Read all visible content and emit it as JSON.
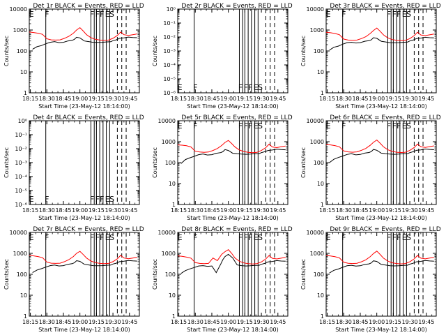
{
  "colors": {
    "events": "#000000",
    "lld": "#ff0000",
    "background": "#ffffff"
  },
  "xlabel": "Start Time (23-May-12 18:14:00)",
  "ylabel": "Counts/sec",
  "xticks": [
    "18:15",
    "18:30",
    "18:45",
    "19:00",
    "19:15",
    "19:30",
    "19:45"
  ],
  "yticks_counts": [
    "1",
    "10",
    "100",
    "1000",
    "10000"
  ],
  "yticks_small": [
    "10⁻⁶",
    "10⁻⁵",
    "10⁻⁴",
    "10⁻³",
    "10⁻²",
    "10⁻¹",
    "10⁰"
  ],
  "chart_data": [
    {
      "type": "line",
      "title": "Det 1r BLACK = Events, RED = LLD",
      "has_data": true,
      "yscale": "log",
      "xlabel": "Start Time (23-May-12 18:14:00)",
      "ylabel": "Counts/sec",
      "flag_labels": [
        "E",
        "F",
        "F",
        "F",
        "F",
        "E",
        "S"
      ],
      "series": [
        {
          "name": "Events",
          "x": [
            "18:17",
            "18:21",
            "18:25",
            "18:29",
            "18:33",
            "18:37",
            "18:41",
            "18:45",
            "18:49",
            "18:53",
            "18:55",
            "18:57",
            "19:00",
            "19:04",
            "19:08",
            "19:12",
            "19:16",
            "19:20",
            "19:24",
            "19:28",
            "19:30",
            "19:33",
            "19:36",
            "19:40",
            "19:44",
            "19:48",
            "19:52"
          ],
          "values": [
            120,
            160,
            180,
            220,
            260,
            280,
            250,
            260,
            300,
            320,
            360,
            450,
            420,
            300,
            280,
            260,
            255,
            260,
            270,
            275,
            310,
            340,
            400,
            420,
            460,
            440,
            430
          ]
        },
        {
          "name": "LLD",
          "x": [
            "18:14",
            "18:18",
            "18:22",
            "18:26",
            "18:30",
            "18:34",
            "18:38",
            "18:42",
            "18:46",
            "18:50",
            "18:54",
            "18:57",
            "19:00",
            "19:03",
            "19:06",
            "19:10",
            "19:14",
            "19:18",
            "19:22",
            "19:26",
            "19:30",
            "19:34",
            "19:37",
            "19:40",
            "19:44",
            "19:48",
            "19:52"
          ],
          "values": [
            800,
            760,
            700,
            620,
            380,
            340,
            330,
            340,
            400,
            500,
            700,
            1000,
            1300,
            900,
            600,
            430,
            360,
            330,
            320,
            330,
            400,
            550,
            800,
            600,
            550,
            600,
            650
          ]
        }
      ]
    },
    {
      "type": "line",
      "title": "Det 2r BLACK = Events, RED = LLD",
      "has_data": false,
      "yscale": "log",
      "xlabel": "Start Time (23-May-12 18:14:00)",
      "ylabel": "Counts/sec",
      "flag_labels": [
        "E",
        "F",
        "F",
        "F",
        "F",
        "E",
        "S"
      ],
      "series": []
    },
    {
      "type": "line",
      "title": "Det 3r BLACK = Events, RED = LLD",
      "has_data": true,
      "yscale": "log",
      "xlabel": "Start Time (23-May-12 18:14:00)",
      "ylabel": "Counts/sec",
      "flag_labels": [
        "E",
        "F",
        "F",
        "F",
        "F",
        "E",
        "S"
      ],
      "series": [
        {
          "name": "Events",
          "x": [
            "18:17",
            "18:21",
            "18:25",
            "18:29",
            "18:33",
            "18:37",
            "18:41",
            "18:45",
            "18:49",
            "18:53",
            "18:55",
            "18:57",
            "19:00",
            "19:04",
            "19:08",
            "19:12",
            "19:16",
            "19:20",
            "19:24",
            "19:28",
            "19:30",
            "19:33",
            "19:36",
            "19:40",
            "19:44",
            "19:48",
            "19:52"
          ],
          "values": [
            110,
            150,
            170,
            210,
            250,
            260,
            240,
            250,
            290,
            310,
            340,
            430,
            400,
            290,
            270,
            250,
            245,
            250,
            260,
            265,
            300,
            330,
            390,
            410,
            450,
            430,
            420
          ]
        },
        {
          "name": "LLD",
          "x": [
            "18:14",
            "18:18",
            "18:22",
            "18:26",
            "18:30",
            "18:34",
            "18:38",
            "18:42",
            "18:46",
            "18:50",
            "18:54",
            "18:57",
            "19:00",
            "19:03",
            "19:06",
            "19:10",
            "19:14",
            "19:18",
            "19:22",
            "19:26",
            "19:30",
            "19:34",
            "19:37",
            "19:40",
            "19:44",
            "19:48",
            "19:52"
          ],
          "values": [
            780,
            740,
            680,
            600,
            370,
            330,
            320,
            330,
            390,
            480,
            680,
            950,
            1250,
            880,
            590,
            420,
            350,
            320,
            310,
            320,
            390,
            540,
            780,
            580,
            540,
            590,
            640
          ]
        }
      ]
    },
    {
      "type": "line",
      "title": "Det 4r BLACK = Events, RED = LLD",
      "has_data": false,
      "yscale": "log",
      "xlabel": "Start Time (23-May-12 18:14:00)",
      "ylabel": "Counts/sec",
      "flag_labels": [
        "E",
        "F",
        "F",
        "F",
        "F",
        "E",
        "S"
      ],
      "series": []
    },
    {
      "type": "line",
      "title": "Det 5r BLACK = Events, RED = LLD",
      "has_data": true,
      "yscale": "log",
      "xlabel": "Start Time (23-May-12 18:14:00)",
      "ylabel": "Counts/sec",
      "flag_labels": [
        "E",
        "F",
        "F",
        "F",
        "F",
        "E",
        "S"
      ],
      "series": [
        {
          "name": "Events",
          "x": [
            "18:17",
            "18:21",
            "18:25",
            "18:29",
            "18:33",
            "18:37",
            "18:41",
            "18:45",
            "18:49",
            "18:53",
            "18:55",
            "18:57",
            "19:00",
            "19:04",
            "19:08",
            "19:12",
            "19:16",
            "19:20",
            "19:24",
            "19:28",
            "19:30",
            "19:33",
            "19:36",
            "19:40",
            "19:44",
            "19:48",
            "19:52"
          ],
          "values": [
            90,
            140,
            170,
            200,
            240,
            260,
            230,
            240,
            280,
            300,
            330,
            420,
            380,
            280,
            265,
            255,
            250,
            255,
            265,
            270,
            300,
            330,
            380,
            400,
            440,
            420,
            410
          ]
        },
        {
          "name": "LLD",
          "x": [
            "18:14",
            "18:18",
            "18:22",
            "18:26",
            "18:30",
            "18:34",
            "18:38",
            "18:42",
            "18:46",
            "18:50",
            "18:54",
            "18:57",
            "19:00",
            "19:03",
            "19:06",
            "19:10",
            "19:14",
            "19:18",
            "19:22",
            "19:26",
            "19:30",
            "19:34",
            "19:37",
            "19:40",
            "19:44",
            "19:48",
            "19:52"
          ],
          "values": [
            700,
            680,
            640,
            560,
            350,
            320,
            310,
            320,
            380,
            470,
            660,
            920,
            1150,
            820,
            560,
            400,
            340,
            310,
            300,
            310,
            380,
            520,
            760,
            560,
            520,
            570,
            620
          ]
        }
      ]
    },
    {
      "type": "line",
      "title": "Det 6r BLACK = Events, RED = LLD",
      "has_data": true,
      "yscale": "log",
      "xlabel": "Start Time (23-May-12 18:14:00)",
      "ylabel": "Counts/sec",
      "flag_labels": [
        "E",
        "F",
        "F",
        "F",
        "F",
        "E",
        "S"
      ],
      "series": [
        {
          "name": "Events",
          "x": [
            "18:17",
            "18:21",
            "18:25",
            "18:29",
            "18:33",
            "18:37",
            "18:41",
            "18:45",
            "18:49",
            "18:53",
            "18:55",
            "18:57",
            "19:00",
            "19:04",
            "19:08",
            "19:12",
            "19:16",
            "19:20",
            "19:24",
            "19:28",
            "19:30",
            "19:33",
            "19:36",
            "19:40",
            "19:44",
            "19:48",
            "19:52"
          ],
          "values": [
            100,
            145,
            175,
            205,
            245,
            265,
            235,
            245,
            285,
            305,
            335,
            425,
            390,
            285,
            268,
            255,
            250,
            255,
            265,
            270,
            300,
            330,
            385,
            405,
            445,
            425,
            415
          ]
        },
        {
          "name": "LLD",
          "x": [
            "18:14",
            "18:18",
            "18:22",
            "18:26",
            "18:30",
            "18:34",
            "18:38",
            "18:42",
            "18:46",
            "18:50",
            "18:54",
            "18:57",
            "19:00",
            "19:03",
            "19:06",
            "19:10",
            "19:14",
            "19:18",
            "19:22",
            "19:26",
            "19:30",
            "19:34",
            "19:37",
            "19:40",
            "19:44",
            "19:48",
            "19:52"
          ],
          "values": [
            720,
            700,
            650,
            570,
            360,
            325,
            315,
            325,
            385,
            475,
            670,
            930,
            1200,
            850,
            570,
            410,
            345,
            315,
            305,
            315,
            385,
            530,
            770,
            570,
            530,
            580,
            630
          ]
        }
      ]
    },
    {
      "type": "line",
      "title": "Det 7r BLACK = Events, RED = LLD",
      "has_data": true,
      "yscale": "log",
      "xlabel": "Start Time (23-May-12 18:14:00)",
      "ylabel": "Counts/sec",
      "flag_labels": [
        "E",
        "F",
        "F",
        "F",
        "F",
        "E",
        "S"
      ],
      "series": [
        {
          "name": "Events",
          "x": [
            "18:17",
            "18:21",
            "18:25",
            "18:29",
            "18:33",
            "18:37",
            "18:41",
            "18:45",
            "18:49",
            "18:53",
            "18:55",
            "18:57",
            "19:00",
            "19:04",
            "19:08",
            "19:12",
            "19:16",
            "19:20",
            "19:24",
            "19:28",
            "19:30",
            "19:33",
            "19:36",
            "19:40",
            "19:44",
            "19:48",
            "19:52"
          ],
          "values": [
            120,
            160,
            185,
            220,
            260,
            275,
            250,
            260,
            300,
            320,
            355,
            445,
            415,
            300,
            280,
            260,
            255,
            260,
            270,
            275,
            310,
            340,
            400,
            420,
            455,
            435,
            425
          ]
        },
        {
          "name": "LLD",
          "x": [
            "18:14",
            "18:18",
            "18:22",
            "18:26",
            "18:30",
            "18:34",
            "18:38",
            "18:42",
            "18:46",
            "18:50",
            "18:54",
            "18:57",
            "19:00",
            "19:03",
            "19:06",
            "19:10",
            "19:14",
            "19:18",
            "19:22",
            "19:26",
            "19:30",
            "19:34",
            "19:37",
            "19:40",
            "19:44",
            "19:48",
            "19:52"
          ],
          "values": [
            800,
            760,
            700,
            620,
            380,
            340,
            330,
            340,
            400,
            500,
            700,
            1000,
            1250,
            880,
            600,
            430,
            360,
            330,
            320,
            330,
            400,
            550,
            800,
            600,
            550,
            600,
            650
          ]
        }
      ]
    },
    {
      "type": "line",
      "title": "Det 8r BLACK = Events, RED = LLD",
      "has_data": true,
      "yscale": "log",
      "xlabel": "Start Time (23-May-12 18:14:00)",
      "ylabel": "Counts/sec",
      "flag_labels": [
        "E",
        "F",
        "F",
        "F",
        "F",
        "E",
        "S"
      ],
      "series": [
        {
          "name": "Events",
          "x": [
            "18:17",
            "18:21",
            "18:25",
            "18:29",
            "18:33",
            "18:37",
            "18:41",
            "18:45",
            "18:49",
            "18:53",
            "18:55",
            "18:57",
            "19:00",
            "19:04",
            "19:08",
            "19:12",
            "19:16",
            "19:20",
            "19:24",
            "19:28",
            "19:30",
            "19:33",
            "19:36",
            "19:40",
            "19:44",
            "19:48",
            "19:52"
          ],
          "values": [
            110,
            150,
            180,
            210,
            250,
            260,
            240,
            250,
            120,
            300,
            500,
            700,
            900,
            600,
            280,
            260,
            250,
            255,
            265,
            270,
            300,
            330,
            390,
            410,
            450,
            430,
            420
          ]
        },
        {
          "name": "LLD",
          "x": [
            "18:14",
            "18:18",
            "18:22",
            "18:26",
            "18:30",
            "18:34",
            "18:38",
            "18:42",
            "18:46",
            "18:50",
            "18:54",
            "18:57",
            "19:00",
            "19:03",
            "19:06",
            "19:10",
            "19:14",
            "19:18",
            "19:22",
            "19:26",
            "19:30",
            "19:34",
            "19:37",
            "19:40",
            "19:44",
            "19:48",
            "19:52"
          ],
          "values": [
            760,
            720,
            660,
            590,
            360,
            330,
            320,
            330,
            600,
            450,
            900,
            1200,
            1500,
            1000,
            600,
            420,
            350,
            320,
            310,
            320,
            390,
            540,
            780,
            580,
            540,
            590,
            640
          ]
        }
      ]
    },
    {
      "type": "line",
      "title": "Det 9r BLACK = Events, RED = LLD",
      "has_data": true,
      "yscale": "log",
      "xlabel": "Start Time (23-May-12 18:14:00)",
      "ylabel": "Counts/sec",
      "flag_labels": [
        "E",
        "F",
        "F",
        "F",
        "F",
        "E",
        "S"
      ],
      "series": [
        {
          "name": "Events",
          "x": [
            "18:17",
            "18:21",
            "18:25",
            "18:29",
            "18:33",
            "18:37",
            "18:41",
            "18:45",
            "18:49",
            "18:53",
            "18:55",
            "18:57",
            "19:00",
            "19:04",
            "19:08",
            "19:12",
            "19:16",
            "19:20",
            "19:24",
            "19:28",
            "19:30",
            "19:33",
            "19:36",
            "19:40",
            "19:44",
            "19:48",
            "19:52"
          ],
          "values": [
            115,
            155,
            178,
            215,
            255,
            270,
            245,
            255,
            295,
            315,
            350,
            440,
            410,
            295,
            275,
            258,
            252,
            258,
            268,
            272,
            305,
            335,
            395,
            415,
            452,
            432,
            422
          ]
        },
        {
          "name": "LLD",
          "x": [
            "18:14",
            "18:18",
            "18:22",
            "18:26",
            "18:30",
            "18:34",
            "18:38",
            "18:42",
            "18:46",
            "18:50",
            "18:54",
            "18:57",
            "19:00",
            "19:03",
            "19:06",
            "19:10",
            "19:14",
            "19:18",
            "19:22",
            "19:26",
            "19:30",
            "19:34",
            "19:37",
            "19:40",
            "19:44",
            "19:48",
            "19:52"
          ],
          "values": [
            790,
            750,
            690,
            610,
            375,
            335,
            325,
            335,
            395,
            490,
            690,
            980,
            1280,
            890,
            595,
            425,
            355,
            325,
            315,
            325,
            395,
            545,
            790,
            590,
            545,
            595,
            645
          ]
        }
      ]
    }
  ]
}
